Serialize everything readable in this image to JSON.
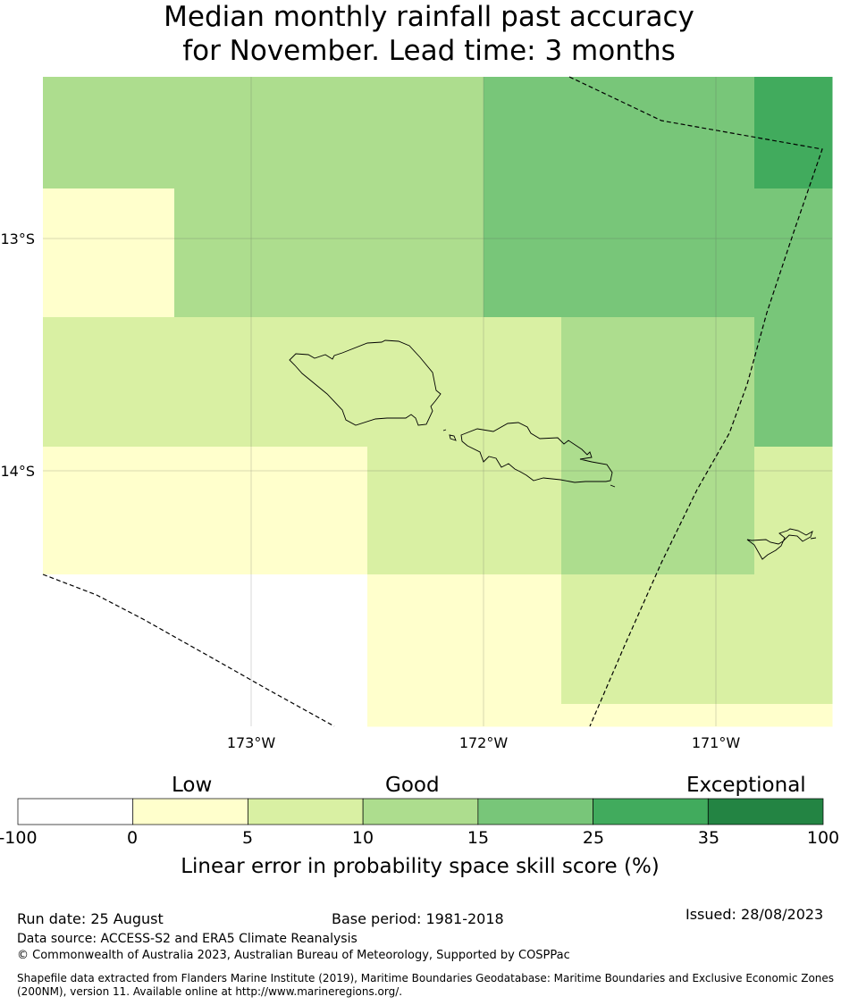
{
  "title": {
    "line1": "Median monthly rainfall past accuracy",
    "line2": "for November. Lead time: 3 months"
  },
  "map": {
    "lat_labels": [
      "13°S",
      "14°S"
    ],
    "lon_labels": [
      "173°W",
      "172°W",
      "171°W"
    ],
    "cells": [
      {
        "row": 0,
        "col": 0,
        "class": "Good"
      },
      {
        "row": 0,
        "col": 1,
        "class": "Good"
      },
      {
        "row": 0,
        "col": 2,
        "class": "Good"
      },
      {
        "row": 0,
        "col": 3,
        "class": "Strong"
      },
      {
        "row": 0,
        "col": 4,
        "class": "Strong"
      },
      {
        "row": 0,
        "col": 5,
        "class": "Strong"
      },
      {
        "row": 0,
        "col": 6,
        "class": "Very high"
      },
      {
        "row": 1,
        "col": 0,
        "class": "Low"
      },
      {
        "row": 1,
        "col": 1,
        "class": "Good"
      },
      {
        "row": 1,
        "col": 2,
        "class": "Good"
      },
      {
        "row": 1,
        "col": 3,
        "class": "Strong"
      },
      {
        "row": 1,
        "col": 4,
        "class": "Strong"
      },
      {
        "row": 1,
        "col": 5,
        "class": "Strong"
      },
      {
        "row": 1,
        "col": 6,
        "class": "Strong"
      },
      {
        "row": 2,
        "col": 0,
        "class": "Moderate"
      },
      {
        "row": 2,
        "col": 1,
        "class": "Moderate"
      },
      {
        "row": 2,
        "col": 2,
        "class": "Moderate"
      },
      {
        "row": 2,
        "col": 3,
        "class": "Moderate"
      },
      {
        "row": 2,
        "col": 4,
        "class": "Good"
      },
      {
        "row": 2,
        "col": 5,
        "class": "Good"
      },
      {
        "row": 2,
        "col": 6,
        "class": "Strong"
      },
      {
        "row": 3,
        "col": 0,
        "class": "Low"
      },
      {
        "row": 3,
        "col": 1,
        "class": "Low"
      },
      {
        "row": 3,
        "col": 2,
        "class": "Moderate"
      },
      {
        "row": 3,
        "col": 3,
        "class": "Moderate"
      },
      {
        "row": 3,
        "col": 4,
        "class": "Good"
      },
      {
        "row": 3,
        "col": 5,
        "class": "Good"
      },
      {
        "row": 3,
        "col": 6,
        "class": "Moderate"
      },
      {
        "row": 4,
        "col": 0,
        "class": "None"
      },
      {
        "row": 4,
        "col": 1,
        "class": "None"
      },
      {
        "row": 4,
        "col": 2,
        "class": "Low"
      },
      {
        "row": 4,
        "col": 3,
        "class": "Low"
      },
      {
        "row": 4,
        "col": 4,
        "class": "Moderate"
      },
      {
        "row": 4,
        "col": 5,
        "class": "Moderate"
      },
      {
        "row": 4,
        "col": 6,
        "class": "Moderate"
      },
      {
        "row": 5,
        "col": 0,
        "class": "None"
      },
      {
        "row": 5,
        "col": 1,
        "class": "None"
      },
      {
        "row": 5,
        "col": 2,
        "class": "Low"
      },
      {
        "row": 5,
        "col": 3,
        "class": "Low"
      },
      {
        "row": 5,
        "col": 4,
        "class": "Low"
      },
      {
        "row": 5,
        "col": 5,
        "class": "Low"
      },
      {
        "row": 5,
        "col": 6,
        "class": "Low"
      }
    ]
  },
  "legend": {
    "categories": [
      "Low",
      "Good",
      "Exceptional"
    ],
    "ticks": [
      "-100",
      "0",
      "5",
      "10",
      "15",
      "25",
      "35",
      "100"
    ],
    "colors": [
      "#ffffff",
      "#ffffcc",
      "#d9f0a3",
      "#addd8e",
      "#78c679",
      "#41ab5d",
      "#238443"
    ],
    "class_colors": {
      "None": "#ffffff",
      "Low": "#ffffcc",
      "Moderate": "#d9f0a3",
      "Good": "#addd8e",
      "Strong": "#78c679",
      "Very high": "#41ab5d"
    },
    "label": "Linear error in probability space skill score (%)"
  },
  "footer": {
    "run_date": "Run date: 25 August",
    "base_period": "Base period: 1981-2018",
    "issued": "Issued: 28/08/2023",
    "data_source": "Data source: ACCESS-S2 and ERA5 Climate Reanalysis",
    "copyright": "© Commonwealth of Australia 2023, Australian Bureau of Meteorology, Supported by COSPPac",
    "shapefile_line1": "Shapefile data extracted from Flanders Marine Institute (2019), Maritime Boundaries Geodatabase: Maritime Boundaries and Exclusive Economic Zones",
    "shapefile_line2": "(200NM), version 11. Available online at http://www.marineregions.org/."
  }
}
